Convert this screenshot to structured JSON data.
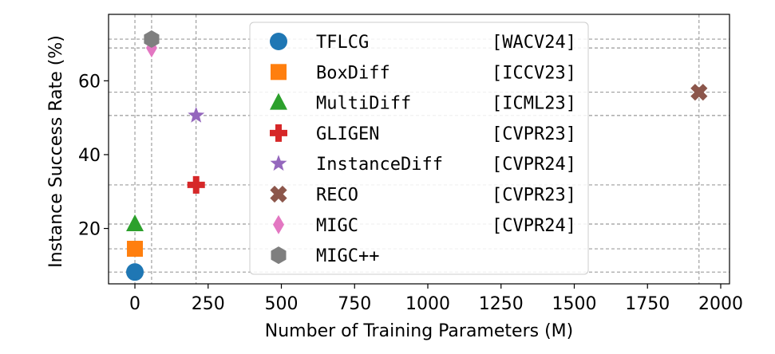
{
  "chart_data": {
    "type": "scatter",
    "title": "",
    "xlabel": "Number of Training Parameters (M)",
    "ylabel": "Instance Success Rate (%)",
    "xlim": [
      -90,
      2030
    ],
    "ylim": [
      5,
      78
    ],
    "xticks": [
      0,
      250,
      500,
      750,
      1000,
      1250,
      1500,
      1750,
      2000
    ],
    "xtick_labels": [
      "0",
      "250",
      "500",
      "750",
      "1000",
      "1250",
      "1500",
      "1750",
      "2000"
    ],
    "yticks": [
      20,
      40,
      60
    ],
    "ytick_labels": [
      "20",
      "40",
      "60"
    ],
    "grid": "dashed lines through each data point",
    "legend_position": "top-center",
    "series": [
      {
        "name": "TFLCG",
        "venue": "[WACV24]",
        "marker": "circle",
        "color": "#1f77b4",
        "x": 0,
        "y": 8.2
      },
      {
        "name": "BoxDiff",
        "venue": "[ICCV23]",
        "marker": "square",
        "color": "#ff7f0e",
        "x": 0,
        "y": 14.5
      },
      {
        "name": "MultiDiff",
        "venue": "[ICML23]",
        "marker": "triangle",
        "color": "#2ca02c",
        "x": 0,
        "y": 21.2
      },
      {
        "name": "GLIGEN",
        "venue": "[CVPR23]",
        "marker": "plus",
        "color": "#d62728",
        "x": 209,
        "y": 31.8
      },
      {
        "name": "InstanceDiff",
        "venue": "[CVPR24]",
        "marker": "star",
        "color": "#9467bd",
        "x": 209,
        "y": 50.6
      },
      {
        "name": "RECO",
        "venue": "[CVPR23]",
        "marker": "x",
        "color": "#8c564b",
        "x": 1926,
        "y": 56.9
      },
      {
        "name": "MIGC",
        "venue": "[CVPR24]",
        "marker": "diamond",
        "color": "#e377c2",
        "x": 57,
        "y": 68.9
      },
      {
        "name": "MIGC++",
        "venue": "",
        "marker": "hexagon",
        "color": "#7f7f7f",
        "x": 57,
        "y": 71.3
      }
    ]
  }
}
